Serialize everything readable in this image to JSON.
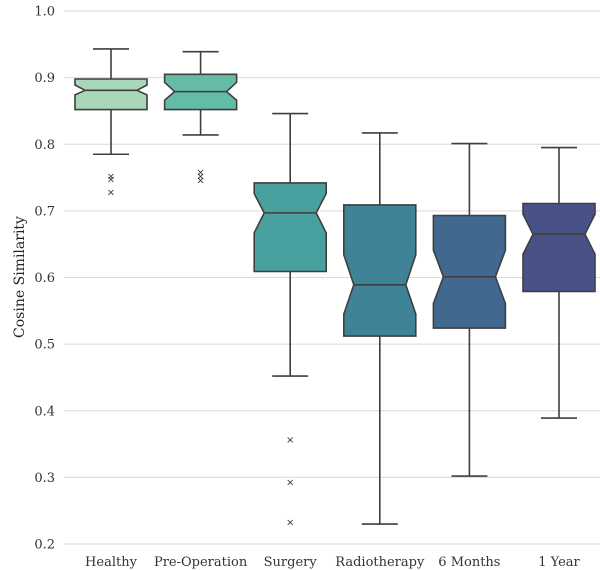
{
  "chart_data": {
    "type": "boxplot",
    "notched": true,
    "ylabel": "Cosine Similarity",
    "xlabel": "",
    "ylim": [
      0.2,
      1.0
    ],
    "yticks": [
      0.2,
      0.3,
      0.4,
      0.5,
      0.6,
      0.7,
      0.8,
      0.9,
      1.0
    ],
    "grid": true,
    "categories": [
      "Healthy",
      "Pre-Operation",
      "Surgery",
      "Radiotherapy",
      "6 Months",
      "1 Year"
    ],
    "boxes": [
      {
        "category": "Healthy",
        "whisker_low": 0.785,
        "q1": 0.852,
        "median": 0.881,
        "q3": 0.898,
        "whisker_high": 0.943,
        "notch_low": 0.874,
        "notch_high": 0.889,
        "outliers": [
          0.752,
          0.748,
          0.728
        ],
        "color": "#a8d8b9"
      },
      {
        "category": "Pre-Operation",
        "whisker_low": 0.814,
        "q1": 0.852,
        "median": 0.879,
        "q3": 0.905,
        "whisker_high": 0.939,
        "notch_low": 0.866,
        "notch_high": 0.893,
        "outliers": [
          0.758,
          0.752,
          0.746
        ],
        "color": "#64bba6"
      },
      {
        "category": "Surgery",
        "whisker_low": 0.452,
        "q1": 0.609,
        "median": 0.697,
        "q3": 0.742,
        "whisker_high": 0.846,
        "notch_low": 0.667,
        "notch_high": 0.726,
        "outliers": [
          0.357,
          0.293,
          0.233
        ],
        "color": "#48a09f"
      },
      {
        "category": "Radiotherapy",
        "whisker_low": 0.23,
        "q1": 0.512,
        "median": 0.589,
        "q3": 0.709,
        "whisker_high": 0.817,
        "notch_low": 0.545,
        "notch_high": 0.634,
        "outliers": [],
        "color": "#3f8496"
      },
      {
        "category": "6 Months",
        "whisker_low": 0.302,
        "q1": 0.524,
        "median": 0.601,
        "q3": 0.693,
        "whisker_high": 0.801,
        "notch_low": 0.561,
        "notch_high": 0.641,
        "outliers": [],
        "color": "#41698f"
      },
      {
        "category": "1 Year",
        "whisker_low": 0.389,
        "q1": 0.579,
        "median": 0.665,
        "q3": 0.711,
        "whisker_high": 0.795,
        "notch_low": 0.635,
        "notch_high": 0.695,
        "outliers": [],
        "color": "#485287"
      }
    ]
  }
}
